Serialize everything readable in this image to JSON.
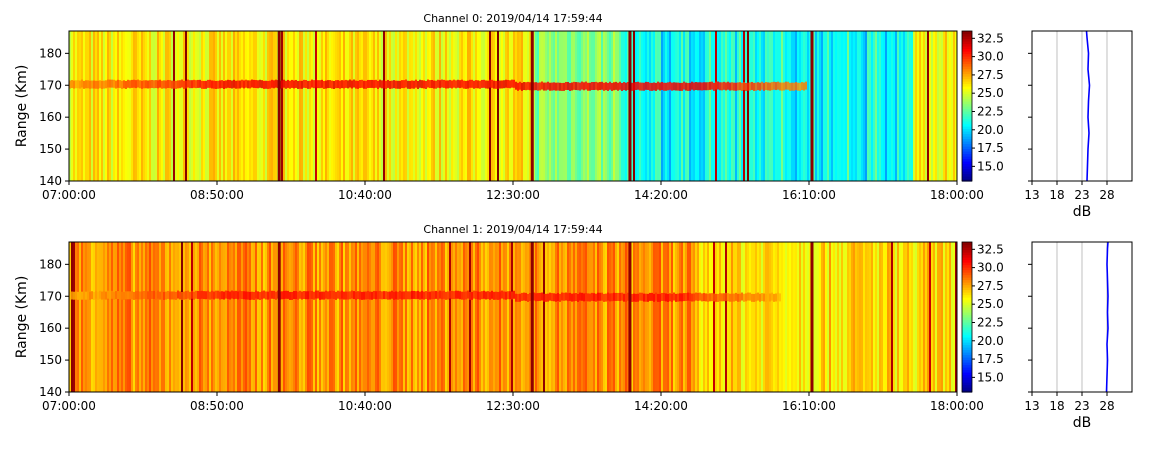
{
  "chart_data": [
    {
      "type": "heatmap",
      "title": "Channel 0: 2019/04/14 17:59:44",
      "ylabel": "Range (Km)",
      "xlabel": "",
      "xticks": [
        "07:00:00",
        "08:50:00",
        "10:40:00",
        "12:30:00",
        "14:20:00",
        "16:10:00",
        "18:00:00"
      ],
      "xlim": [
        "07:00:00",
        "18:00:00"
      ],
      "yticks": [
        140,
        150,
        160,
        170,
        180
      ],
      "ylim": [
        140,
        187
      ],
      "colorbar": {
        "ticks": [
          15.0,
          17.5,
          20.0,
          22.5,
          25.0,
          27.5,
          30.0,
          32.5
        ],
        "range": [
          13,
          33.5
        ],
        "colormap": "jet"
      },
      "description_values": {
        "background_db": 26,
        "echo_layer_range_km": 170,
        "echo_layer_db": 31
      },
      "profile": {
        "xlabel": "dB",
        "xticks": [
          13,
          18,
          23,
          28
        ],
        "xlim": [
          13,
          33
        ],
        "ylim": [
          140,
          187
        ],
        "grid": true,
        "line_color": "#0000ff",
        "range": [
          140,
          145,
          150,
          155,
          160,
          165,
          170,
          175,
          180,
          185,
          187
        ],
        "db": [
          24.0,
          24.1,
          24.2,
          24.4,
          24.2,
          24.3,
          24.5,
          24.2,
          24.3,
          24.0,
          23.9
        ]
      }
    },
    {
      "type": "heatmap",
      "title": "Channel 1: 2019/04/14 17:59:44",
      "ylabel": "Range (Km)",
      "xlabel": "",
      "xticks": [
        "07:00:00",
        "08:50:00",
        "10:40:00",
        "12:30:00",
        "14:20:00",
        "16:10:00",
        "18:00:00"
      ],
      "xlim": [
        "07:00:00",
        "18:00:00"
      ],
      "yticks": [
        140,
        150,
        160,
        170,
        180
      ],
      "ylim": [
        140,
        187
      ],
      "colorbar": {
        "ticks": [
          15.0,
          17.5,
          20.0,
          22.5,
          25.0,
          27.5,
          30.0,
          32.5
        ],
        "range": [
          13,
          33.5
        ],
        "colormap": "jet"
      },
      "description_values": {
        "background_db": 28,
        "echo_layer_range_km": 170,
        "echo_layer_db": 30.5
      },
      "profile": {
        "xlabel": "dB",
        "xticks": [
          13,
          18,
          23,
          28
        ],
        "xlim": [
          13,
          33
        ],
        "ylim": [
          140,
          187
        ],
        "grid": true,
        "line_color": "#0000ff",
        "range": [
          140,
          145,
          150,
          155,
          160,
          165,
          170,
          175,
          180,
          185,
          187
        ],
        "db": [
          27.9,
          28.0,
          28.1,
          28.0,
          28.2,
          28.1,
          28.2,
          28.1,
          28.0,
          28.1,
          28.2
        ]
      }
    }
  ]
}
